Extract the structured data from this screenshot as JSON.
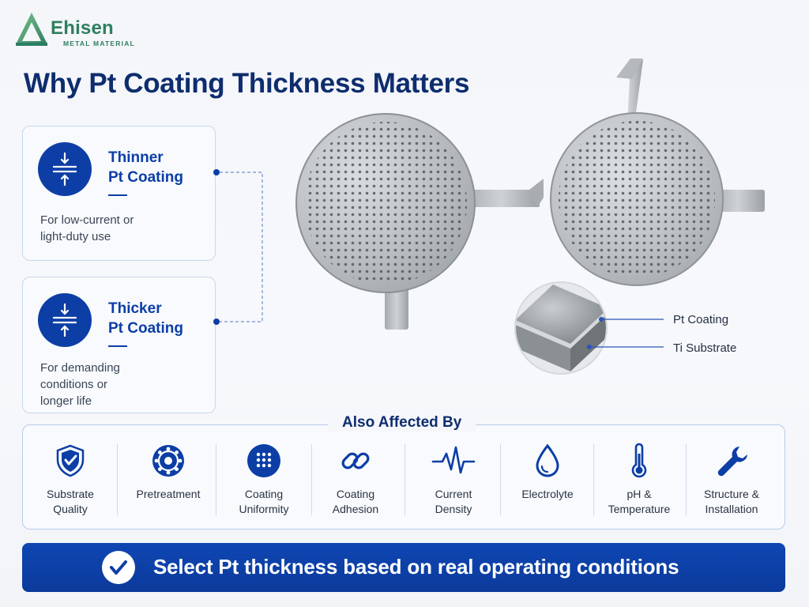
{
  "brand": {
    "name": "Ehisen",
    "tagline": "METAL MATERIAL",
    "logo_icon": "triangle-logo-icon",
    "color": "#2f7f5f"
  },
  "title": "Why Pt Coating Thickness Matters",
  "cards": {
    "thinner": {
      "icon": "compress-arrows-icon",
      "heading_line1": "Thinner",
      "heading_line2": "Pt Coating",
      "desc_line1": "For low-current or",
      "desc_line2": "light-duty use"
    },
    "thicker": {
      "icon": "expand-arrows-icon",
      "heading_line1": "Thicker",
      "heading_line2": "Pt Coating",
      "desc_line1": "For demanding",
      "desc_line2": "conditions or",
      "desc_line3": "longer life"
    }
  },
  "cross_section": {
    "pt_label": "Pt Coating",
    "ti_label": "Ti Substrate"
  },
  "also_affected": {
    "title": "Also Affected By",
    "factors": [
      {
        "icon": "shield-check-icon",
        "line1": "Substrate",
        "line2": "Quality"
      },
      {
        "icon": "gear-circle-icon",
        "line1": "Pretreatment",
        "line2": ""
      },
      {
        "icon": "dot-grid-icon",
        "line1": "Coating",
        "line2": "Uniformity"
      },
      {
        "icon": "chain-link-icon",
        "line1": "Coating",
        "line2": "Adhesion"
      },
      {
        "icon": "pulse-wave-icon",
        "line1": "Current",
        "line2": "Density"
      },
      {
        "icon": "droplet-icon",
        "line1": "Electrolyte",
        "line2": ""
      },
      {
        "icon": "thermometer-icon",
        "line1": "pH &",
        "line2": "Temperature"
      },
      {
        "icon": "wrench-icon",
        "line1": "Structure &",
        "line2": "Installation"
      }
    ]
  },
  "cta": {
    "icon": "checkmark-icon",
    "text": "Select Pt thickness based on real operating conditions"
  },
  "colors": {
    "primary": "#0c3ea6",
    "title": "#0e2d6e",
    "card_border": "#c9d7ee"
  }
}
